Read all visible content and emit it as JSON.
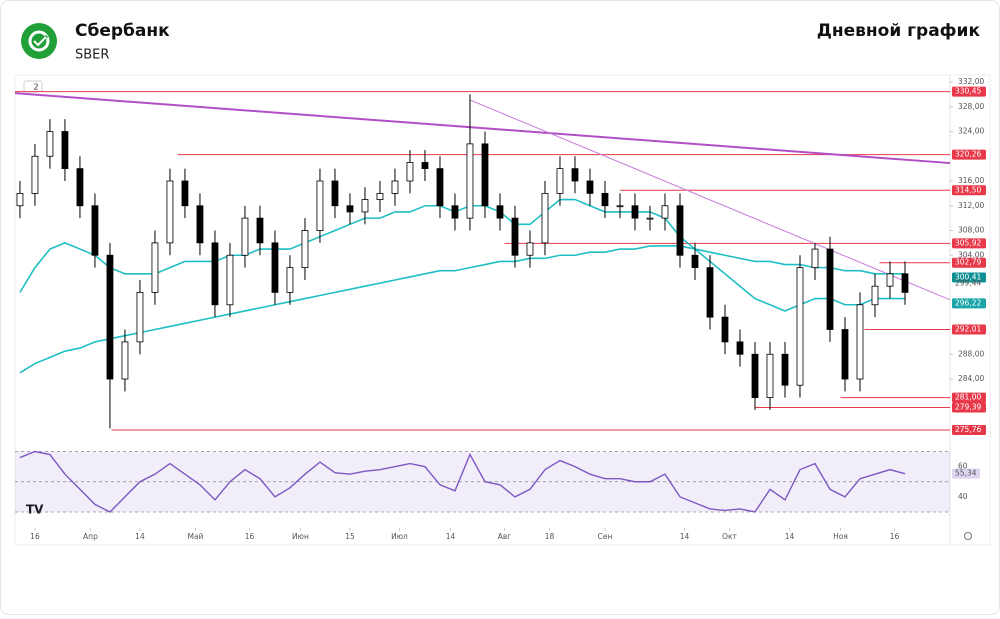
{
  "header": {
    "company": "Сбербанк",
    "ticker": "SBER",
    "chart_name": "Дневной график"
  },
  "chart_data": {
    "type": "candlestick",
    "interval_badge": "2",
    "xlim": [
      -0.33,
      62
    ],
    "xticks": [
      {
        "value": 1,
        "label": "16"
      },
      {
        "value": 4.7,
        "label": "Апр"
      },
      {
        "value": 8,
        "label": "14"
      },
      {
        "value": 11.7,
        "label": "Май"
      },
      {
        "value": 15.3,
        "label": "16"
      },
      {
        "value": 18.7,
        "label": "Июн"
      },
      {
        "value": 22,
        "label": "15"
      },
      {
        "value": 25.3,
        "label": "Июл"
      },
      {
        "value": 28.7,
        "label": "14"
      },
      {
        "value": 32.3,
        "label": "Авг"
      },
      {
        "value": 35.3,
        "label": "18"
      },
      {
        "value": 39,
        "label": "Сен"
      },
      {
        "value": 44.3,
        "label": "14"
      },
      {
        "value": 47.3,
        "label": "Окт"
      },
      {
        "value": 51.3,
        "label": "14"
      },
      {
        "value": 54.7,
        "label": "Ноя"
      },
      {
        "value": 58.3,
        "label": "16"
      }
    ],
    "ylim": [
      275.76,
      332
    ],
    "yticks": [
      {
        "value": 332,
        "label": "332,00"
      },
      {
        "value": 328,
        "label": "328,00"
      },
      {
        "value": 324,
        "label": "324,00"
      },
      {
        "value": 316,
        "label": "316,00"
      },
      {
        "value": 312,
        "label": "312,00"
      },
      {
        "value": 308,
        "label": "308,00"
      },
      {
        "value": 304,
        "label": "304,00"
      },
      {
        "value": 288,
        "label": "288,00"
      },
      {
        "value": 284,
        "label": "284,00"
      }
    ],
    "open": [
      312,
      314,
      320,
      324,
      318,
      312,
      304,
      284,
      290,
      298,
      306,
      316,
      312,
      306,
      296,
      304,
      310,
      306,
      298,
      302,
      308,
      316,
      312,
      311,
      313,
      314,
      316,
      319,
      318,
      312,
      310,
      322,
      312,
      310,
      304,
      306,
      314,
      318,
      316,
      314,
      312,
      312,
      310,
      310,
      312,
      304,
      302,
      294,
      290,
      288,
      281,
      288,
      283,
      302,
      305,
      292,
      284,
      296,
      299,
      301
    ],
    "high": [
      316,
      322,
      326,
      326,
      320,
      314,
      306,
      292,
      300,
      308,
      318,
      318,
      314,
      308,
      306,
      312,
      312,
      308,
      304,
      310,
      318,
      318,
      314,
      315,
      316,
      318,
      321,
      321,
      320,
      314,
      330,
      324,
      314,
      312,
      308,
      316,
      320,
      320,
      318,
      316,
      314,
      314,
      312,
      314,
      314,
      306,
      304,
      296,
      292,
      290,
      290,
      290,
      304,
      306,
      307,
      294,
      298,
      301,
      303,
      303
    ],
    "low": [
      310,
      312,
      318,
      316,
      310,
      302,
      276,
      282,
      288,
      296,
      304,
      310,
      304,
      294,
      294,
      302,
      304,
      296,
      296,
      300,
      306,
      310,
      309,
      309,
      311,
      312,
      314,
      316,
      310,
      308,
      308,
      310,
      308,
      302,
      302,
      304,
      312,
      314,
      312,
      310,
      310,
      308,
      308,
      308,
      302,
      300,
      292,
      288,
      286,
      279,
      279,
      281,
      281,
      300,
      290,
      282,
      282,
      294,
      297,
      296
    ],
    "close": [
      314,
      320,
      324,
      318,
      312,
      304,
      284,
      290,
      298,
      306,
      316,
      312,
      306,
      296,
      304,
      310,
      306,
      298,
      302,
      308,
      316,
      312,
      311,
      313,
      314,
      316,
      319,
      318,
      312,
      310,
      322,
      312,
      310,
      304,
      306,
      314,
      318,
      316,
      314,
      312,
      312,
      310,
      310,
      312,
      304,
      302,
      294,
      290,
      288,
      281,
      288,
      283,
      302,
      305,
      292,
      284,
      296,
      299,
      301,
      298
    ],
    "up_color": "#ffffff",
    "down_color": "#000000",
    "moving_averages": [
      {
        "color": "#1fbfc4",
        "values": [
          298,
          302,
          305,
          306,
          305,
          304,
          302,
          301,
          301,
          301,
          302,
          303,
          303,
          303,
          304,
          304,
          305,
          305,
          305,
          306,
          307,
          308,
          309,
          310,
          310,
          311,
          311,
          312,
          312,
          311,
          312,
          312,
          311,
          309,
          309,
          311,
          313,
          313,
          312,
          311,
          311,
          311,
          311,
          310,
          307,
          305,
          303,
          301,
          299,
          297,
          296,
          295,
          296,
          297,
          297,
          296,
          296,
          297,
          297,
          297
        ]
      },
      {
        "color": "#1fbfc4",
        "values": [
          285,
          286.5,
          287.5,
          288.5,
          289,
          290,
          290.5,
          291,
          291.5,
          292,
          292.5,
          293,
          293.5,
          294,
          294.5,
          295,
          295.5,
          296,
          296.5,
          297,
          297.5,
          298,
          298.5,
          299,
          299.5,
          300,
          300.5,
          301,
          301.5,
          301.5,
          302,
          302.5,
          303,
          303,
          303.5,
          303.5,
          304,
          304,
          304.5,
          304.5,
          305,
          305,
          305.5,
          305.5,
          305.5,
          305,
          304.5,
          304,
          303.5,
          303,
          303,
          302.5,
          302.5,
          302,
          302,
          301.5,
          301.5,
          301,
          301,
          301
        ]
      }
    ],
    "levels": [
      {
        "value": 330.45,
        "label": "330,45",
        "from": -0.33
      },
      {
        "value": 320.26,
        "label": "320,26",
        "from": 10.5
      },
      {
        "value": 314.5,
        "label": "314,50",
        "from": 40
      },
      {
        "value": 305.92,
        "label": "305,92",
        "from": 32.3
      },
      {
        "value": 302.79,
        "label": "302,79",
        "from": 57.3
      },
      {
        "value": 292.01,
        "label": "292,01",
        "from": 56.3
      },
      {
        "value": 281,
        "label": "281,00",
        "from": 54.7
      },
      {
        "value": 279.39,
        "label": "279,39",
        "from": 49
      },
      {
        "value": 275.76,
        "label": "275,76",
        "from": 6.1
      }
    ],
    "level_color": "#e8394a",
    "price_labels": [
      {
        "value": 300.41,
        "label": "300,41",
        "color": "#0e8f93"
      },
      {
        "value": 299.44,
        "label": "299,44",
        "color": null
      },
      {
        "value": 296.22,
        "label": "296,22",
        "color": "#1aa5a9"
      }
    ],
    "trendlines": [
      {
        "x": [
          -0.33,
          62
        ],
        "y": [
          330.2,
          318.9
        ],
        "color": "#b24fc6",
        "width": 2
      },
      {
        "x": [
          30,
          62
        ],
        "y": [
          329.1,
          296.8
        ],
        "color": "#c77ddb",
        "width": 1
      }
    ],
    "rsi": {
      "color": "#7e57c2",
      "ylim": [
        28,
        71
      ],
      "yticks": [
        60,
        40
      ],
      "bands": [
        70,
        50,
        30
      ],
      "last_label": "55,34",
      "values": [
        66,
        70,
        68,
        55,
        45,
        35,
        30,
        40,
        50,
        55,
        62,
        55,
        48,
        38,
        50,
        58,
        52,
        40,
        46,
        55,
        63,
        56,
        55,
        57,
        58,
        60,
        62,
        60,
        48,
        44,
        68,
        50,
        48,
        40,
        45,
        58,
        64,
        60,
        55,
        52,
        52,
        50,
        50,
        55,
        40,
        36,
        32,
        31,
        32,
        30,
        45,
        38,
        58,
        62,
        45,
        40,
        52,
        55,
        58,
        55.34
      ]
    }
  }
}
